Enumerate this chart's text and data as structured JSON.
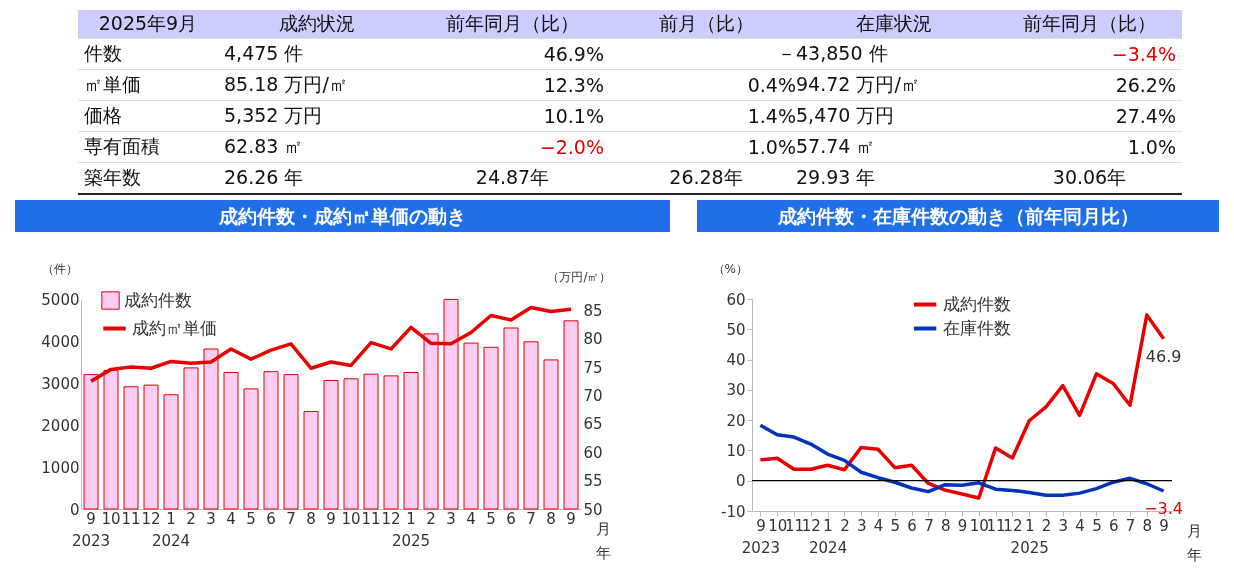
{
  "chart_data": [
    {
      "type": "other",
      "annotations": [
        "2025年9月",
        "成約状況",
        "前年同月（比）",
        "前月（比）",
        "件数",
        "4,475 件",
        "46.9%",
        "－",
        "㎡単価",
        "85.18 万円/㎡",
        "12.3%",
        "0.4%",
        "価格",
        "5,352 万円",
        "10.1%",
        "1.4%",
        "専有面積",
        "62.83 ㎡",
        "−2.0%",
        "1.0%",
        "築年数",
        "26.26 年",
        "24.87年",
        "26.28年"
      ]
    },
    {
      "type": "other",
      "annotations": [
        "在庫状況",
        "前年同月（比）",
        "43,850 件",
        "−3.4%",
        "94.72 万円/㎡",
        "26.2%",
        "5,470 万円",
        "27.4%",
        "57.74 ㎡",
        "1.0%",
        "29.93 年",
        "30.06年"
      ]
    },
    {
      "type": "bar",
      "title": "成約件数・成約㎡単価の動き",
      "ylabel": "（件）",
      "y2label": "（万円/㎡）",
      "xlabel": "月年",
      "legend": "top left",
      "categories": [
        "9\n2023",
        "10",
        "11",
        "12",
        "1\n2024",
        "2",
        "3",
        "4",
        "5",
        "6",
        "7",
        "8",
        "9",
        "10",
        "11",
        "12",
        "1\n2025",
        "2",
        "3",
        "4",
        "5",
        "6",
        "7",
        "8",
        "9"
      ],
      "ylim": [
        0,
        5000
      ],
      "yticks": [
        0,
        {
          "value": 1000,
          "label": "1000"
        },
        {
          "value": 2000,
          "label": "2000"
        },
        {
          "value": 3000,
          "label": "3000"
        },
        {
          "value": 4000,
          "label": "4000"
        },
        {
          "value": 5000,
          "label": "5000"
        }
      ],
      "y2lim": [
        50,
        87
      ],
      "y2ticks": [
        50,
        55,
        60,
        65,
        70,
        75,
        80,
        85
      ],
      "series": [
        {
          "name": "成約件数",
          "type": "bar",
          "color": "#ffccf2",
          "values": [
            3200,
            3300,
            2910,
            2950,
            2720,
            3360,
            3810,
            3250,
            2860,
            3270,
            3200,
            2320,
            3060,
            3100,
            3210,
            3170,
            3250,
            4170,
            4990,
            3950,
            3850,
            4310,
            3980,
            3550,
            4480
          ]
        },
        {
          "name": "成約㎡単価",
          "type": "line",
          "axis": "y2",
          "color": "#e60000",
          "values": [
            72.5,
            74.6,
            75.0,
            74.8,
            76.0,
            75.7,
            75.9,
            78.2,
            76.4,
            78.0,
            79.1,
            74.8,
            75.9,
            75.3,
            79.3,
            78.2,
            82.0,
            79.2,
            79.1,
            81.1,
            84.1,
            83.3,
            85.5,
            84.8,
            85.2
          ]
        }
      ]
    },
    {
      "type": "line",
      "title": "成約件数・在庫件数の動き（前年同月比）",
      "ylabel": "（%）",
      "xlabel": "月年",
      "legend": "top",
      "categories": [
        "9\n2023",
        "10",
        "11",
        "12",
        "1\n2024",
        "2",
        "3",
        "4",
        "5",
        "6",
        "7",
        "8",
        "9",
        "10",
        "11",
        "12",
        "1\n2025",
        "2",
        "3",
        "4",
        "5",
        "6",
        "7",
        "8",
        "9"
      ],
      "ylim": [
        -10,
        60
      ],
      "yticks": [
        -10,
        0,
        10,
        20,
        30,
        40,
        50,
        60
      ],
      "ref_lines": [
        {
          "axis": "y",
          "value": 0,
          "color": "#000000"
        }
      ],
      "series": [
        {
          "name": "成約件数",
          "color": "#e60000",
          "values": [
            6.9,
            7.4,
            3.8,
            3.8,
            5.1,
            3.6,
            11.0,
            10.4,
            4.3,
            5.1,
            -0.9,
            -3.1,
            -4.4,
            -5.7,
            10.8,
            7.5,
            19.8,
            24.4,
            31.4,
            21.6,
            35.3,
            32.1,
            24.9,
            54.7,
            46.9
          ],
          "value_labels": [
            null,
            null,
            null,
            null,
            null,
            null,
            null,
            null,
            null,
            null,
            null,
            null,
            null,
            null,
            null,
            null,
            null,
            null,
            null,
            null,
            null,
            null,
            null,
            null,
            "46.9"
          ]
        },
        {
          "name": "在庫件数",
          "color": "#0033bb",
          "values": [
            18.3,
            15.2,
            14.4,
            12.1,
            8.8,
            6.7,
            2.8,
            1.0,
            -0.5,
            -2.4,
            -3.6,
            -1.3,
            -1.5,
            -0.7,
            -2.8,
            -3.2,
            -3.9,
            -4.8,
            -4.8,
            -4.1,
            -2.6,
            -0.5,
            0.8,
            -1.0,
            -3.4
          ],
          "value_labels": [
            null,
            null,
            null,
            null,
            null,
            null,
            null,
            null,
            null,
            null,
            null,
            null,
            null,
            null,
            null,
            null,
            null,
            null,
            null,
            null,
            null,
            null,
            null,
            null,
            "−3.4"
          ]
        }
      ]
    }
  ]
}
